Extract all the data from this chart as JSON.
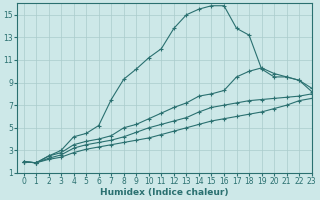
{
  "xlabel": "Humidex (Indice chaleur)",
  "background_color": "#cde8e8",
  "grid_color": "#aacccc",
  "line_color": "#2a7070",
  "xlim": [
    -0.5,
    23
  ],
  "ylim": [
    1,
    16
  ],
  "xticks": [
    0,
    1,
    2,
    3,
    4,
    5,
    6,
    7,
    8,
    9,
    10,
    11,
    12,
    13,
    14,
    15,
    16,
    17,
    18,
    19,
    20,
    21,
    22,
    23
  ],
  "yticks": [
    1,
    3,
    5,
    7,
    9,
    11,
    13,
    15
  ],
  "line1_x": [
    0,
    1,
    2,
    3,
    4,
    5,
    6,
    7,
    8,
    9,
    10,
    11,
    12,
    13,
    14,
    15,
    16,
    17,
    18,
    19,
    20,
    21,
    22,
    23
  ],
  "line1_y": [
    2.0,
    1.9,
    2.5,
    3.0,
    4.2,
    4.5,
    5.2,
    7.5,
    9.3,
    10.2,
    11.2,
    12.0,
    13.8,
    15.0,
    15.5,
    15.8,
    15.8,
    13.8,
    13.2,
    10.2,
    9.5,
    9.5,
    9.2,
    8.2
  ],
  "line2_x": [
    0,
    1,
    2,
    3,
    4,
    5,
    6,
    7,
    8,
    9,
    10,
    11,
    12,
    13,
    14,
    15,
    16,
    17,
    18,
    19,
    20,
    21,
    22,
    23
  ],
  "line2_y": [
    2.0,
    1.9,
    2.5,
    2.8,
    3.5,
    3.8,
    4.0,
    4.3,
    5.0,
    5.3,
    5.8,
    6.3,
    6.8,
    7.2,
    7.8,
    8.0,
    8.3,
    9.5,
    10.0,
    10.3,
    9.8,
    9.5,
    9.2,
    8.5
  ],
  "line3_x": [
    0,
    1,
    2,
    3,
    4,
    5,
    6,
    7,
    8,
    9,
    10,
    11,
    12,
    13,
    14,
    15,
    16,
    17,
    18,
    19,
    20,
    21,
    22,
    23
  ],
  "line3_y": [
    2.0,
    1.9,
    2.3,
    2.6,
    3.2,
    3.5,
    3.7,
    3.9,
    4.2,
    4.6,
    5.0,
    5.3,
    5.6,
    5.9,
    6.4,
    6.8,
    7.0,
    7.2,
    7.4,
    7.5,
    7.6,
    7.7,
    7.8,
    8.0
  ],
  "line4_x": [
    0,
    1,
    2,
    3,
    4,
    5,
    6,
    7,
    8,
    9,
    10,
    11,
    12,
    13,
    14,
    15,
    16,
    17,
    18,
    19,
    20,
    21,
    22,
    23
  ],
  "line4_y": [
    2.0,
    1.9,
    2.2,
    2.4,
    2.8,
    3.1,
    3.3,
    3.5,
    3.7,
    3.9,
    4.1,
    4.4,
    4.7,
    5.0,
    5.3,
    5.6,
    5.8,
    6.0,
    6.2,
    6.4,
    6.7,
    7.0,
    7.4,
    7.6
  ]
}
